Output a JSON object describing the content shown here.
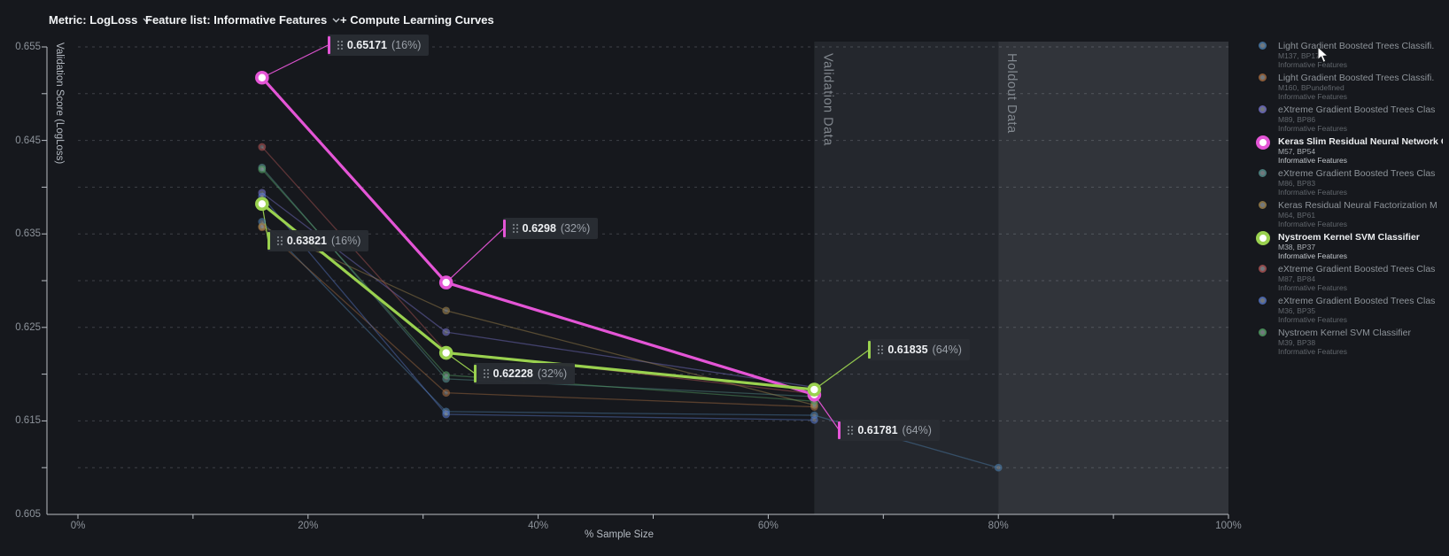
{
  "toolbar": {
    "metric_label": "Metric: LogLoss",
    "feature_list_label": "Feature list: Informative Features",
    "compute_button_label": "+ Compute Learning Curves"
  },
  "chart_data": {
    "type": "line",
    "title": "",
    "xlabel": "% Sample Size",
    "ylabel": "Validation Score (LogLoss)",
    "xlim": [
      0,
      100
    ],
    "ylim": [
      0.605,
      0.655
    ],
    "x_ticks": [
      "0%",
      "20%",
      "40%",
      "60%",
      "80%",
      "100%"
    ],
    "x_tick_values": [
      0,
      20,
      40,
      60,
      80,
      100
    ],
    "x_minor_step_pct": 10,
    "y_tick_labels": [
      "0.655",
      "0.645",
      "0.635",
      "0.625",
      "0.615",
      "0.605"
    ],
    "y_tick_values": [
      0.655,
      0.645,
      0.635,
      0.625,
      0.615,
      0.605
    ],
    "grid": "dashed horizontal every 0.005",
    "legend_position": "right",
    "regions": [
      {
        "label": "Validation Data",
        "from_pct": 64,
        "to_pct": 80,
        "color": "#24272d"
      },
      {
        "label": "Holdout Data",
        "from_pct": 80,
        "to_pct": 100,
        "color": "#31343a"
      }
    ],
    "series": [
      {
        "name": "Light Gradient Boosted Trees Classifi.",
        "model": "M137, BP17",
        "feature_list": "Informative Features",
        "color": "#4d80b0",
        "highlighted": false,
        "x": [
          16,
          32,
          64,
          80
        ],
        "y": [
          0.6363,
          0.616,
          0.6156,
          0.61
        ]
      },
      {
        "name": "Light Gradient Boosted Trees Classifi.",
        "model": "M160, BPundefined",
        "feature_list": "Informative Features",
        "color": "#a86e42",
        "highlighted": false,
        "x": [
          16,
          32,
          64
        ],
        "y": [
          0.6357,
          0.618,
          0.6165
        ]
      },
      {
        "name": "eXtreme Gradient Boosted Trees Clas",
        "model": "M89, BP86",
        "feature_list": "Informative Features",
        "color": "#7774cb",
        "highlighted": false,
        "x": [
          16,
          32,
          64
        ],
        "y": [
          0.6394,
          0.6245,
          0.6186
        ]
      },
      {
        "name": "Keras Slim Residual Neural Network C",
        "model": "M57, BP54",
        "feature_list": "Informative Features",
        "color": "#e455d6",
        "highlighted": true,
        "x": [
          16,
          32,
          64
        ],
        "y": [
          0.65171,
          0.6298,
          0.61781
        ]
      },
      {
        "name": "eXtreme Gradient Boosted Trees Clas",
        "model": "M86, BP83",
        "feature_list": "Informative Features",
        "color": "#579390",
        "highlighted": false,
        "x": [
          16,
          32,
          64
        ],
        "y": [
          0.6421,
          0.6195,
          0.6176
        ]
      },
      {
        "name": "Keras Residual Neural Factorization M",
        "model": "M64, BP61",
        "feature_list": "Informative Features",
        "color": "#a3874e",
        "highlighted": false,
        "x": [
          16,
          32,
          64
        ],
        "y": [
          0.6358,
          0.6268,
          0.6167
        ]
      },
      {
        "name": "Nystroem Kernel SVM Classifier",
        "model": "M38, BP37",
        "feature_list": "Informative Features",
        "color": "#9ad14f",
        "highlighted": true,
        "x": [
          16,
          32,
          64
        ],
        "y": [
          0.63821,
          0.62228,
          0.61835
        ]
      },
      {
        "name": "eXtreme Gradient Boosted Trees Clas",
        "model": "M87, BP84",
        "feature_list": "Informative Features",
        "color": "#b25757",
        "highlighted": false,
        "x": [
          16,
          32,
          64
        ],
        "y": [
          0.6443,
          0.6224,
          0.6179
        ]
      },
      {
        "name": "eXtreme Gradient Boosted Trees Clas",
        "model": "M36, BP35",
        "feature_list": "Informative Features",
        "color": "#5878ca",
        "highlighted": false,
        "x": [
          16,
          32,
          64
        ],
        "y": [
          0.639,
          0.6157,
          0.6151
        ]
      },
      {
        "name": "Nystroem Kernel SVM Classifier",
        "model": "M39, BP38",
        "feature_list": "Informative Features",
        "color": "#56a467",
        "highlighted": false,
        "x": [
          16,
          32,
          64
        ],
        "y": [
          0.6419,
          0.6199,
          0.6171
        ]
      }
    ],
    "annotations": [
      {
        "series_index": 3,
        "value_label": "0.65171",
        "pct_label": "(16%)",
        "x": 16,
        "y": 0.65171
      },
      {
        "series_index": 6,
        "value_label": "0.63821",
        "pct_label": "(16%)",
        "x": 16,
        "y": 0.63821
      },
      {
        "series_index": 3,
        "value_label": "0.6298",
        "pct_label": "(32%)",
        "x": 32,
        "y": 0.6298
      },
      {
        "series_index": 6,
        "value_label": "0.62228",
        "pct_label": "(32%)",
        "x": 32,
        "y": 0.62228
      },
      {
        "series_index": 6,
        "value_label": "0.61835",
        "pct_label": "(64%)",
        "x": 64,
        "y": 0.61835
      },
      {
        "series_index": 3,
        "value_label": "0.61781",
        "pct_label": "(64%)",
        "x": 64,
        "y": 0.61781
      }
    ]
  }
}
